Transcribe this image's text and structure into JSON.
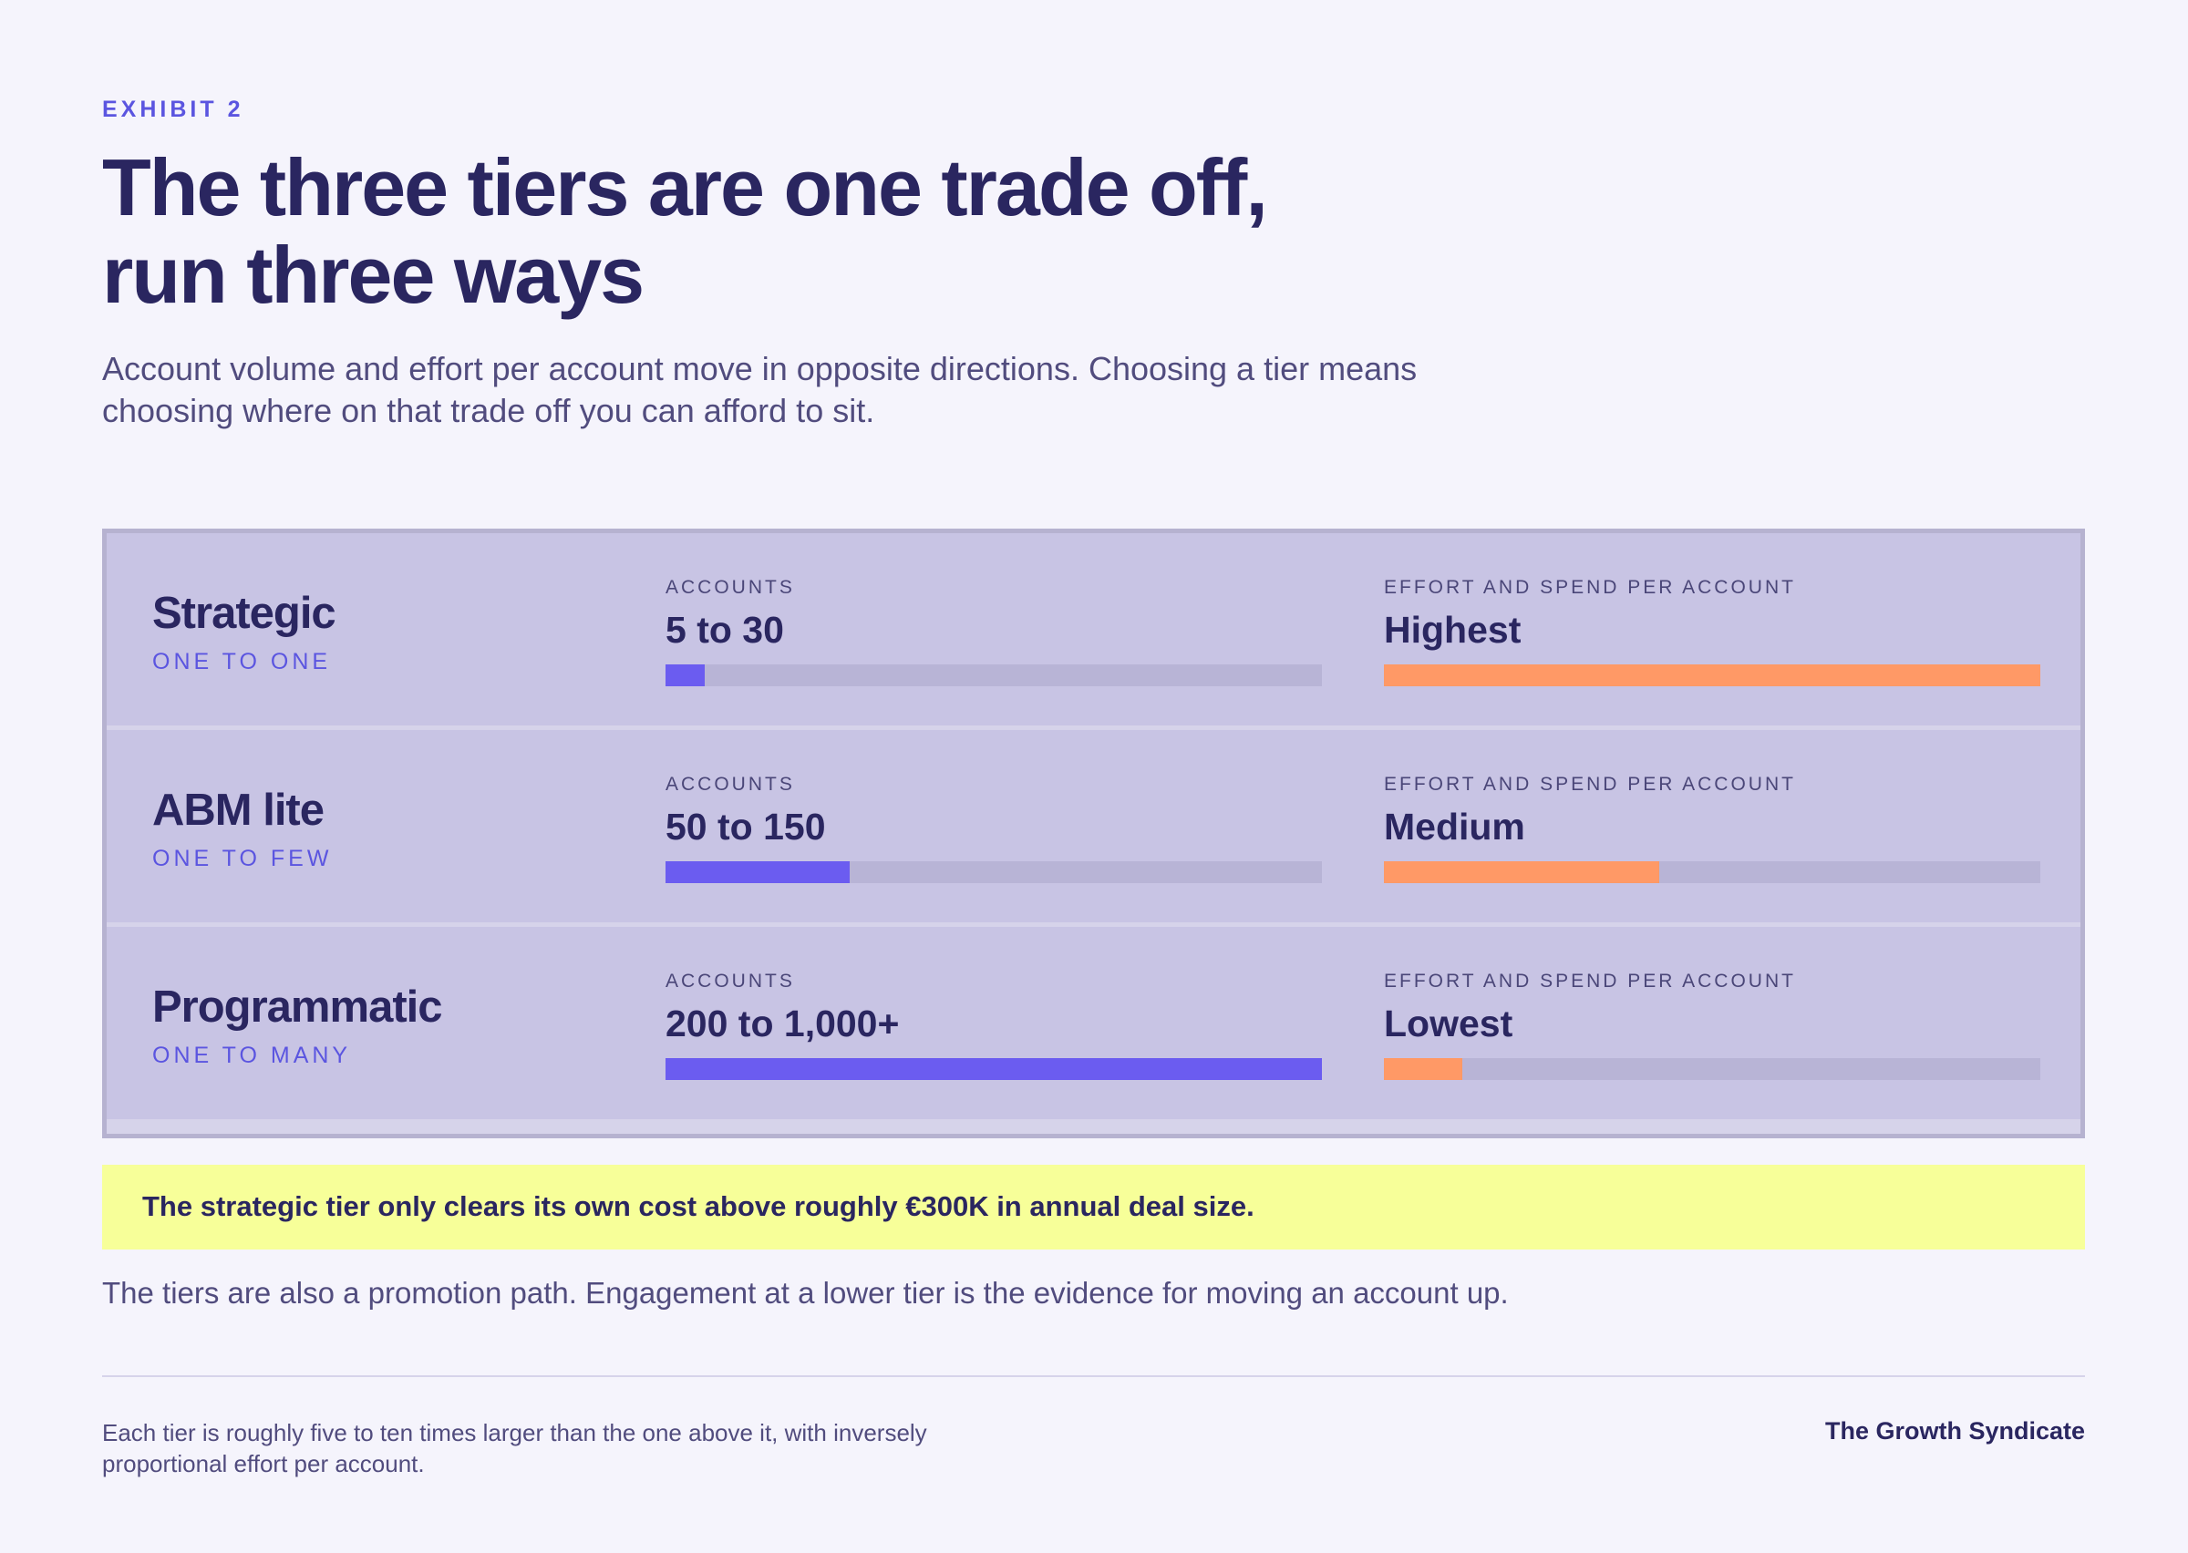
{
  "exhibit_label": "EXHIBIT 2",
  "title": "The three tiers are one trade off, run three ways",
  "subtitle": "Account volume and effort per account move in opposite directions. Choosing a tier means choosing where on that trade off you can afford to sit.",
  "tiers": [
    {
      "name": "Strategic",
      "mode": "ONE TO ONE",
      "accounts_label": "ACCOUNTS",
      "accounts": "5 to 30",
      "accounts_bar": 6,
      "effort_label": "EFFORT AND SPEND PER ACCOUNT",
      "effort": "Highest",
      "effort_bar": 100
    },
    {
      "name": "ABM lite",
      "mode": "ONE TO FEW",
      "accounts_label": "ACCOUNTS",
      "accounts": "50 to 150",
      "accounts_bar": 28,
      "effort_label": "EFFORT AND SPEND PER ACCOUNT",
      "effort": "Medium",
      "effort_bar": 42
    },
    {
      "name": "Programmatic",
      "mode": "ONE TO MANY",
      "accounts_label": "ACCOUNTS",
      "accounts": "200 to 1,000+",
      "accounts_bar": 100,
      "effort_label": "EFFORT AND SPEND PER ACCOUNT",
      "effort": "Lowest",
      "effort_bar": 12
    }
  ],
  "callout": "The strategic tier only clears its own cost above roughly €300K in annual deal size.",
  "note": "The tiers are also a promotion path. Engagement at a lower tier is the evidence for moving an account up.",
  "footnote": "Each tier is roughly five to ten times larger than the one above it, with inversely proportional effort per account.",
  "brand": "The Growth Syndicate"
}
